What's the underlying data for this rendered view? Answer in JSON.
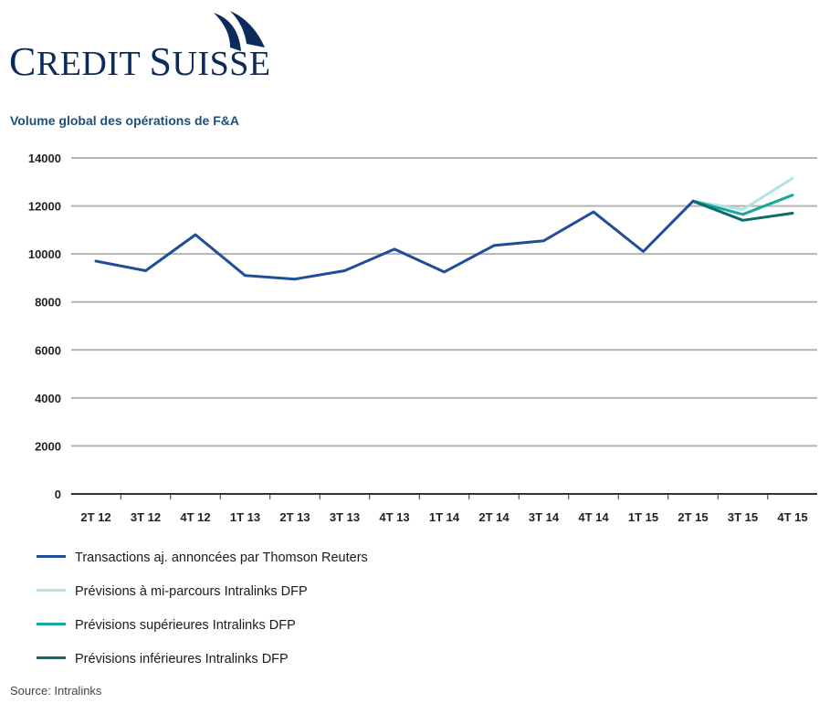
{
  "brand": {
    "name_part1_cap": "C",
    "name_part1_rest": "REDIT",
    "name_part2_cap": "S",
    "name_part2_rest": "UISSE",
    "logo_icon": "sails-icon",
    "color": "#0c2b5c"
  },
  "source": "Source: Intralinks",
  "chart_data": {
    "type": "line",
    "title": "Volume global des opérations de F&A",
    "xlabel": "",
    "ylabel": "",
    "categories": [
      "2T 12",
      "3T 12",
      "4T 12",
      "1T 13",
      "2T 13",
      "3T 13",
      "4T 13",
      "1T 14",
      "2T 14",
      "3T 14",
      "4T 14",
      "1T 15",
      "2T 15",
      "3T 15",
      "4T 15"
    ],
    "ylim": [
      0,
      14000
    ],
    "yticks": [
      "0",
      "2000",
      "4000",
      "6000",
      "8000",
      "10000",
      "12000",
      "14000"
    ],
    "grid": true,
    "legend_position": "bottom-left",
    "series": [
      {
        "name": "Transactions aj. annoncées par Thomson Reuters",
        "color": "#1f4e99",
        "values": [
          9700,
          9300,
          10800,
          9100,
          8950,
          9300,
          10200,
          9250,
          10350,
          10550,
          11750,
          10100,
          12200,
          null,
          null
        ]
      },
      {
        "name": "Prévisions à mi-parcours Intralinks DFP",
        "color": "#b5e3e2",
        "values": [
          null,
          null,
          null,
          null,
          null,
          null,
          null,
          null,
          null,
          null,
          null,
          null,
          12200,
          11850,
          13150
        ]
      },
      {
        "name": "Prévisions supérieures Intralinks DFP",
        "color": "#17a89c",
        "values": [
          null,
          null,
          null,
          null,
          null,
          null,
          null,
          null,
          null,
          null,
          null,
          null,
          12200,
          11650,
          12450
        ]
      },
      {
        "name": "Prévisions inférieures Intralinks DFP",
        "color": "#0f6b6b",
        "values": [
          null,
          null,
          null,
          null,
          null,
          null,
          null,
          null,
          null,
          null,
          null,
          null,
          12200,
          11400,
          11700
        ]
      }
    ]
  }
}
